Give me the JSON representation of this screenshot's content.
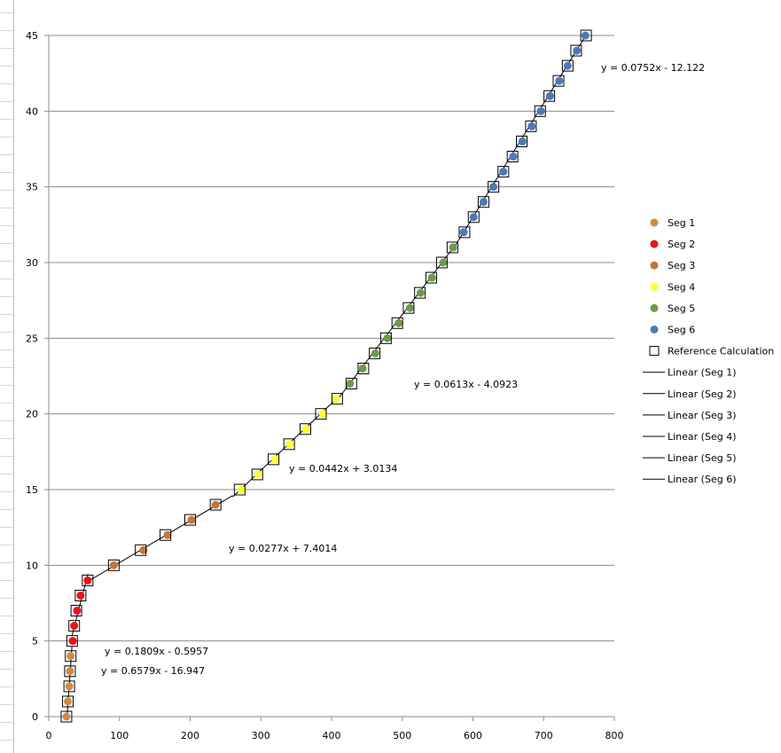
{
  "chart_data": {
    "type": "scatter",
    "title": "",
    "xlabel": "",
    "ylabel": "",
    "xlim": [
      0,
      800
    ],
    "ylim": [
      0,
      45
    ],
    "x_ticks": [
      0,
      100,
      200,
      300,
      400,
      500,
      600,
      700,
      800
    ],
    "y_ticks": [
      0,
      5,
      10,
      15,
      20,
      25,
      30,
      35,
      40,
      45
    ],
    "grid": "horizontal",
    "legend_position": "right",
    "series": [
      {
        "name": "Seg 1",
        "marker": "circle",
        "color": "#d08a45",
        "x": [
          25,
          27,
          29,
          30,
          31
        ],
        "y": [
          0,
          1,
          2,
          3,
          4
        ]
      },
      {
        "name": "Seg 2",
        "marker": "circle",
        "color": "#e8141c",
        "x": [
          34,
          36,
          40,
          45,
          55
        ],
        "y": [
          5,
          6,
          7,
          8,
          9
        ]
      },
      {
        "name": "Seg 3",
        "marker": "circle",
        "color": "#c67638",
        "x": [
          92,
          134,
          168,
          202,
          236
        ],
        "y": [
          10,
          11,
          12,
          13,
          14
        ]
      },
      {
        "name": "Seg 4",
        "marker": "circle",
        "color": "#ffff33",
        "x": [
          272,
          296,
          320,
          341,
          364,
          388,
          406
        ],
        "y": [
          15,
          16,
          17,
          18,
          19,
          20,
          21
        ]
      },
      {
        "name": "Seg 5",
        "marker": "circle",
        "color": "#6e9a4c",
        "x": [
          426,
          444,
          462,
          479,
          495,
          511,
          526,
          542,
          558,
          572
        ],
        "y": [
          22,
          23,
          24,
          25,
          26,
          27,
          28,
          29,
          30,
          31
        ]
      },
      {
        "name": "Seg 6",
        "marker": "circle",
        "color": "#4f78b8",
        "x": [
          587,
          601,
          615,
          629,
          643,
          657,
          670,
          683,
          696,
          709,
          722,
          734,
          747,
          759
        ],
        "y": [
          32,
          33,
          34,
          35,
          36,
          37,
          38,
          39,
          40,
          41,
          42,
          43,
          44,
          45
        ]
      },
      {
        "name": "Reference Calculation",
        "marker": "square",
        "color": "#000000",
        "x": [
          25,
          27,
          29,
          30,
          31,
          33,
          36,
          39,
          45,
          55,
          92,
          130,
          165,
          200,
          236,
          270,
          295,
          318,
          340,
          363,
          385,
          408,
          428,
          445,
          461,
          477,
          493,
          509,
          525,
          541,
          556,
          571,
          588,
          601,
          615,
          629,
          643,
          656,
          669,
          682,
          695,
          708,
          721,
          734,
          746,
          760
        ],
        "y": [
          0,
          1,
          2,
          3,
          4,
          5,
          6,
          7,
          8,
          9,
          10,
          11,
          12,
          13,
          14,
          15,
          16,
          17,
          18,
          19,
          20,
          21,
          22,
          23,
          24,
          25,
          26,
          27,
          28,
          29,
          30,
          31,
          32,
          33,
          34,
          35,
          36,
          37,
          38,
          39,
          40,
          41,
          42,
          43,
          44,
          45
        ]
      }
    ],
    "trendlines": [
      {
        "name": "Linear (Seg 1)",
        "slope": 0.6579,
        "intercept": -16.947,
        "x_range": [
          25.76,
          32.84
        ],
        "equation": "y = 0.6579x - 16.947"
      },
      {
        "name": "Linear (Seg 2)",
        "slope": 0.1809,
        "intercept": -0.5957,
        "x_range": [
          32.84,
          55.3
        ],
        "equation": "y = 0.1809x - 0.5957"
      },
      {
        "name": "Linear (Seg 3)",
        "slope": 0.0277,
        "intercept": 7.4014,
        "x_range": [
          55.3,
          260.2
        ],
        "equation": "y = 0.0277x + 7.4014"
      },
      {
        "name": "Linear (Seg 4)",
        "slope": 0.0442,
        "intercept": 3.0134,
        "x_range": [
          260.2,
          410.2
        ],
        "equation": "y = 0.0442x + 3.0134"
      },
      {
        "name": "Linear (Seg 5)",
        "slope": 0.0613,
        "intercept": -4.0923,
        "x_range": [
          410.2,
          573
        ],
        "equation": "y = 0.0613x - 4.0923"
      },
      {
        "name": "Linear (Seg 6)",
        "slope": 0.0752,
        "intercept": -12.122,
        "x_range": [
          573,
          760
        ]
      }
    ],
    "annotations": [
      {
        "text": "y = 0.0752x - 12.122",
        "series": "Seg 6"
      },
      {
        "text": "y = 0.0613x - 4.0923",
        "series": "Seg 5"
      },
      {
        "text": "y = 0.0442x + 3.0134",
        "series": "Seg 4"
      },
      {
        "text": "y = 0.0277x + 7.4014",
        "series": "Seg 3"
      },
      {
        "text": "y = 0.1809x - 0.5957",
        "series": "Seg 2"
      },
      {
        "text": "y = 0.6579x - 16.947",
        "series": "Seg 1"
      }
    ],
    "legend": [
      {
        "label": "Seg 1",
        "kind": "circle",
        "color": "#d08a45"
      },
      {
        "label": "Seg 2",
        "kind": "circle",
        "color": "#e8141c"
      },
      {
        "label": "Seg 3",
        "kind": "circle",
        "color": "#c67638"
      },
      {
        "label": "Seg 4",
        "kind": "circle",
        "color": "#ffff33"
      },
      {
        "label": "Seg 5",
        "kind": "circle",
        "color": "#6e9a4c"
      },
      {
        "label": "Seg 6",
        "kind": "circle",
        "color": "#4f78b8"
      },
      {
        "label": "Reference Calculation",
        "kind": "square",
        "color": "#000000"
      },
      {
        "label": "Linear (Seg 1)",
        "kind": "line",
        "color": "#000000"
      },
      {
        "label": "Linear (Seg 2)",
        "kind": "line",
        "color": "#000000"
      },
      {
        "label": "Linear (Seg 3)",
        "kind": "line",
        "color": "#000000"
      },
      {
        "label": "Linear (Seg 4)",
        "kind": "line",
        "color": "#000000"
      },
      {
        "label": "Linear (Seg 5)",
        "kind": "line",
        "color": "#000000"
      },
      {
        "label": "Linear (Seg 6)",
        "kind": "line",
        "color": "#000000"
      }
    ]
  }
}
